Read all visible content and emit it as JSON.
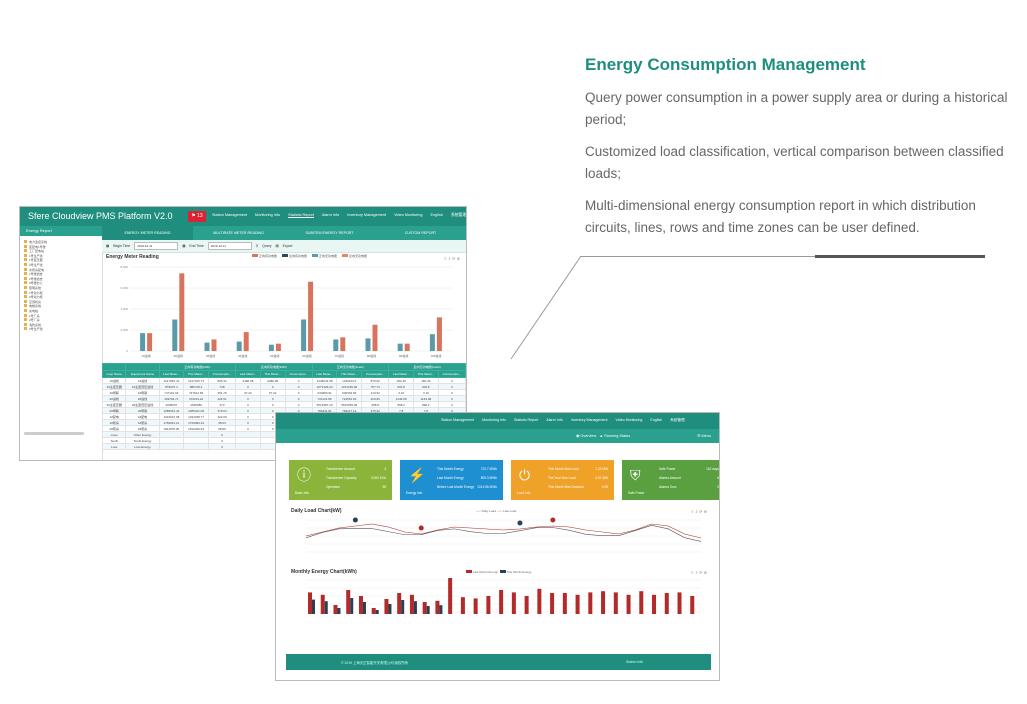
{
  "promo": {
    "title": "Energy Consumption Management",
    "p1": "Query power consumption in a power supply area or during a historical period;",
    "p2": "Customized load classification, vertical comparison between classified loads;",
    "p3": "Multi-dimensional energy consumption report in which distribution circuits, lines, rows and time zones can be user defined."
  },
  "shot1": {
    "app_title": "Sfere Cloudview PMS Platform V2.0",
    "bell_count": "13",
    "menu": [
      "Station Management",
      "Monitoring Info",
      "Statistic Report",
      "Alarm Info",
      "Inventory Management",
      "Video Monitoring",
      "English",
      "系统管理"
    ],
    "sidebar_title": "Energy Report",
    "tree": [
      "电力监控系统",
      "变配电1号楼",
      "工厂配电站",
      "1号生产线",
      "1号变压器",
      "2号生产线",
      "水泵房配电",
      "1号楼宿舍",
      "2号楼宿舍",
      "3号楼办公",
      "照明系统",
      "1号动力柜",
      "2号动力柜",
      "空调机房",
      "电梯系统",
      "充电桩",
      "1号厂房",
      "2号厂房",
      "消防系统",
      "3号生产线"
    ],
    "tabs": [
      "ENERGY METER READING",
      "MULTIRATE METER READING",
      "SUBITEM ENERGY REPORT",
      "CUSTOM REPORT"
    ],
    "query": {
      "begin_label": "Begin Time",
      "begin_value": "2019-10-11",
      "end_label": "End Time",
      "end_value": "2019-10-11",
      "query_btn": "Query",
      "export_btn": "Export"
    },
    "chart_title": "Energy Meter Reading",
    "tools": "≡ ⇩ ⟳ ⊕",
    "table": {
      "group_headers": [
        "",
        "",
        "正向有功电能(kWh)",
        "反向有功电能(kWh)",
        "正向无功电能(kvarh)",
        "反向无功电能(kvarh)"
      ],
      "headers": [
        "Loop Name",
        "Equipment Name",
        "Last Meter...",
        "This Meter...",
        "Consumptio...",
        "Last Meter...",
        "This Meter...",
        "Consumptio...",
        "Last Meter...",
        "This Meter...",
        "Consumptio...",
        "Last Meter...",
        "This Meter...",
        "Consumptio..."
      ],
      "rows": [
        [
          "1#进线",
          "1#进线",
          "1217081.41",
          "1217916.73",
          "835.32",
          "2486.08",
          "2486.08",
          "0",
          "1348243.98",
          "1349123.6",
          "879.62",
          "182.49",
          "182.49",
          "0"
        ],
        [
          "1#主变压器",
          "1#主变低压进线",
          "879970.4",
          "880718.4",
          "748",
          "0",
          "0",
          "0",
          "1071429.23",
          "1072186.96",
          "757.73",
          "604.8",
          "604.8",
          "0"
        ],
        [
          "1#母联",
          "1#母联",
          "747161.03",
          "747612.82",
          "451.79",
          "97.22",
          "97.22",
          "0",
          "644983.91",
          "645394.83",
          "410.92",
          "3.16",
          "3.16",
          "0"
        ],
        [
          "2#进线",
          "2#进线",
          "469794.71",
          "470219.22",
          "424.51",
          "0",
          "0",
          "0",
          "721131.86",
          "721561.52",
          "429.66",
          "1149.08",
          "1149.08",
          "0"
        ],
        [
          "2#主变压器",
          "2#主变低压进线",
          "4648007",
          "4648380",
          "373",
          "0",
          "0",
          "0",
          "5514987.19",
          "5515355.99",
          "368.8",
          "868.2",
          "868.2",
          "0"
        ],
        [
          "2#母联",
          "2#母联",
          "1085061.44",
          "1085441.08",
          "379.64",
          "0",
          "0",
          "0",
          "781841.81",
          "782217.13",
          "375.32",
          "7.8",
          "7.8",
          "0"
        ],
        [
          "1#配电",
          "1#配电",
          "1034016.08",
          "1034338.77",
          "322.69",
          "0",
          "0",
          "0",
          "970891",
          "971179.74",
          "288.74",
          "2854",
          "2854",
          "0"
        ],
        [
          "1#泵房",
          "1#泵房",
          "1769961.21",
          "1769999.24",
          "38.03",
          "0",
          "0",
          "0",
          "1013391.9",
          "1013475.31",
          "83.41",
          "70.9",
          "70.9",
          "0"
        ],
        [
          "2#泵房",
          "2#泵房",
          "1811978.05",
          "1812046.94",
          "68.89",
          "0",
          "0",
          "0",
          "1110107.13",
          "1110236.09",
          "128.96",
          "70.9",
          "70.9",
          "0"
        ],
        [
          "Lines",
          "Other Energy",
          "",
          "",
          "0",
          "",
          "",
          "0",
          "",
          "",
          "0",
          "",
          "",
          "0"
        ],
        [
          "Sunlit",
          "Sunlit Energy",
          "",
          "",
          "0",
          "",
          "",
          "0",
          "",
          "",
          "0",
          "",
          "",
          "0"
        ],
        [
          "Loss",
          "Loss Energy",
          "",
          "",
          "0",
          "",
          "",
          "0",
          "",
          "",
          "0",
          "",
          "",
          "0"
        ]
      ]
    },
    "chart_data": {
      "type": "bar",
      "title": "Energy Meter Reading",
      "categories": [
        "1#进线",
        "2#进线",
        "3#进线",
        "4#进线",
        "5#进线",
        "6#进线",
        "7#进线",
        "8#进线",
        "9#进线",
        "10#进线"
      ],
      "series": [
        {
          "name": "正向有功电能",
          "color": "#d8735e",
          "values": [
            1700,
            7400,
            1100,
            1800,
            700,
            6600,
            1300,
            2500,
            700,
            3200
          ]
        },
        {
          "name": "反向有功电能",
          "color": "#2a4a5f",
          "values": [
            0,
            0,
            0,
            0,
            0,
            0,
            0,
            0,
            0,
            0
          ]
        },
        {
          "name": "正向无功电能",
          "color": "#5b9aa8",
          "values": [
            1700,
            3000,
            800,
            900,
            600,
            3000,
            1100,
            1200,
            700,
            1600
          ]
        },
        {
          "name": "反向无功电能",
          "color": "#e0866c",
          "values": [
            0,
            0,
            0,
            0,
            0,
            0,
            0,
            0,
            0,
            0
          ]
        }
      ],
      "ylim": [
        0,
        8000
      ],
      "yticks": [
        "0",
        "2,000",
        "4,000",
        "6,000",
        "8,000"
      ],
      "grid": true,
      "legend": "top-center"
    }
  },
  "shot2": {
    "menu": [
      "Station Management",
      "Monitoring Info",
      "Statistic Report",
      "Alarm Info",
      "Inventory Management",
      "Video Monitoring",
      "English",
      "系统管理"
    ],
    "overview": "Overview",
    "running": "Running Status",
    "menu_btn": "Menu",
    "cards": [
      {
        "caption": "Basic Info",
        "color": "#8bb53a",
        "icon": "info",
        "rows": [
          [
            "Transformer Amount",
            "3"
          ],
          [
            "Transformer Capacity",
            "3,000 KVA"
          ],
          [
            "Operation",
            "98"
          ]
        ]
      },
      {
        "caption": "Energy Info",
        "color": "#1e8fd0",
        "icon": "lightning",
        "rows": [
          [
            "This Month Energy",
            "722.7 MWh"
          ],
          [
            "Last Month Energy",
            "809.3 MWh"
          ],
          [
            "Before Last Month Energy",
            "1014.56 MWh"
          ]
        ]
      },
      {
        "caption": "Load Info",
        "color": "#f0a127",
        "icon": "plug",
        "rows": [
          [
            "This Month Max Load",
            "1.23 MW"
          ],
          [
            "The Year Max Load",
            "2.57 MW"
          ],
          [
            "This Month Max Demand",
            "0.98"
          ]
        ]
      },
      {
        "caption": "Safe Power",
        "color": "#5aa040",
        "icon": "shield",
        "rows": [
          [
            "Safe Power",
            "162 days"
          ],
          [
            "Alarms Amount",
            "8"
          ],
          [
            "Alarms Sum",
            "0"
          ]
        ]
      }
    ],
    "daily_title": "Daily Load Chart(kW)",
    "monthly_title": "Monthly Energy Chart(kWh)",
    "footer_left": "© 2019 上海天正智能开关有限公司 版权所有",
    "footer_right": "Station Info",
    "daily_legend": [
      "Daily Load",
      "Last Load"
    ],
    "monthly_legend": [
      "Last Month Energy",
      "This Month Energy"
    ],
    "monthly_values": [
      36,
      32,
      15,
      40,
      30,
      10,
      25,
      35,
      32,
      20,
      22,
      60,
      28,
      26,
      30,
      40,
      36,
      30,
      42,
      35,
      35,
      32,
      36,
      38,
      36,
      32,
      38,
      32,
      35,
      36,
      30
    ],
    "daily_values": [
      18,
      22,
      26,
      28,
      30,
      27,
      22,
      20,
      24,
      27,
      26,
      25,
      24,
      25,
      27,
      28,
      27,
      24,
      22,
      20,
      24,
      30,
      28,
      20,
      16
    ]
  }
}
